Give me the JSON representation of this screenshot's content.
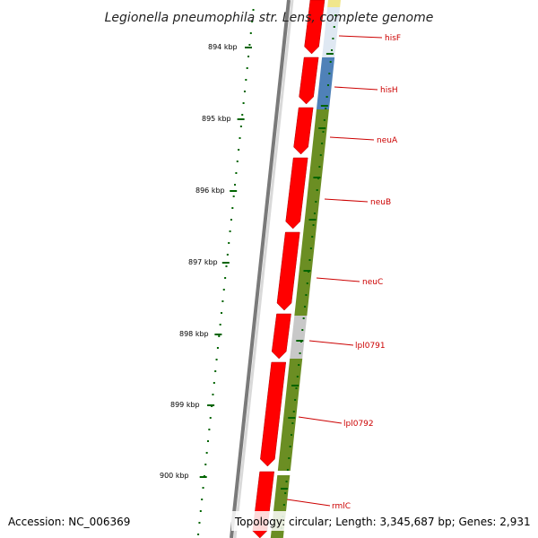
{
  "title": "Legionella pneumophila str. Lens, complete genome",
  "accession": "Accession: NC_006369",
  "summary": "Topology: circular; Length: 3,345,687 bp; Genes: 2,931",
  "ruler": {
    "ticks": [
      "894 kbp",
      "895 kbp",
      "896 kbp",
      "897 kbp",
      "898 kbp",
      "899 kbp",
      "900 kbp"
    ],
    "tick_color": "#006400"
  },
  "genes": [
    "hisF",
    "hisH",
    "neuA",
    "neuB",
    "neuC",
    "lpl0791",
    "lpl0792",
    "rmlC"
  ],
  "colors": {
    "forward_strand": "#ff0000",
    "cog_blue": "#4f81b8",
    "cog_olive": "#6b8e23",
    "cog_gray": "#c8c8c8",
    "cog_yellow": "#f0e68c",
    "gene_label": "#cc0000",
    "backbone": "#808080"
  }
}
